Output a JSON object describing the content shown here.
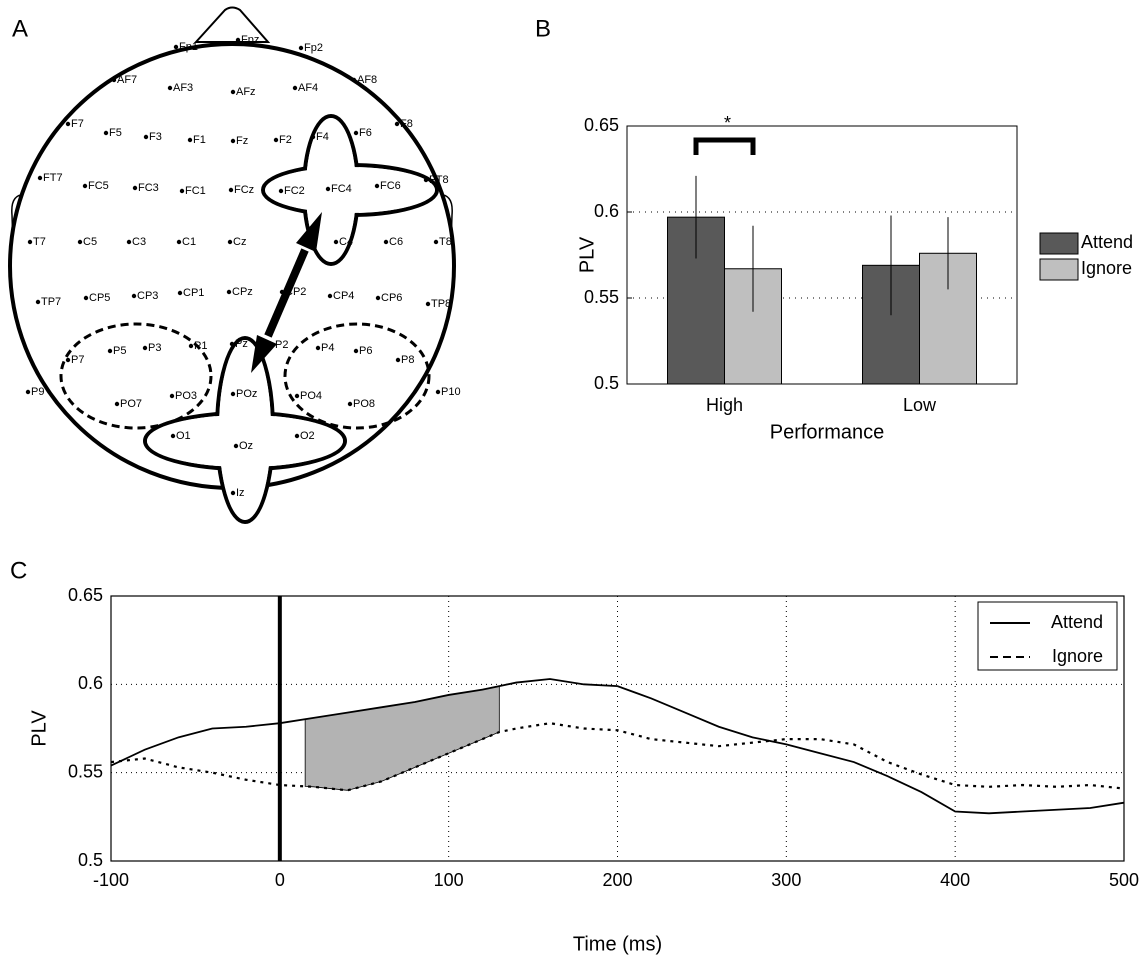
{
  "panel_labels": [
    "A",
    "B",
    "C"
  ],
  "head_map": {
    "electrodes": [
      "Fp1",
      "Fpz",
      "Fp2",
      "AF7",
      "AF3",
      "AFz",
      "AF4",
      "AF8",
      "F7",
      "F5",
      "F3",
      "F1",
      "Fz",
      "F2",
      "F4",
      "F6",
      "F8",
      "FT7",
      "FC5",
      "FC3",
      "FC1",
      "FCz",
      "FC2",
      "FC4",
      "FC6",
      "FT8",
      "T7",
      "C5",
      "C3",
      "C1",
      "Cz",
      "C4",
      "C6",
      "T8",
      "TP7",
      "CP5",
      "CP3",
      "CP1",
      "CPz",
      "CP2",
      "CP4",
      "CP6",
      "TP8",
      "P7",
      "P5",
      "P3",
      "P1",
      "Pz",
      "P2",
      "P4",
      "P6",
      "P8",
      "P9",
      "PO7",
      "PO3",
      "POz",
      "PO4",
      "PO8",
      "P10",
      "O1",
      "Oz",
      "O2",
      "Iz"
    ]
  },
  "chart_data": [
    {
      "type": "bar",
      "xlabel": "Performance",
      "ylabel": "PLV",
      "categories": [
        "High",
        "Low"
      ],
      "series": [
        {
          "name": "Attend",
          "color": "#595959",
          "values": [
            0.597,
            0.569
          ],
          "errors": [
            0.024,
            0.029
          ]
        },
        {
          "name": "Ignore",
          "color": "#bfbfbf",
          "values": [
            0.567,
            0.576
          ],
          "errors": [
            0.025,
            0.021
          ]
        }
      ],
      "ylim": [
        0.5,
        0.65
      ],
      "yticks": [
        0.5,
        0.55,
        0.6,
        0.65
      ],
      "grid": true,
      "legend": "right",
      "annotation": "*"
    },
    {
      "type": "line",
      "xlabel": "Time (ms)",
      "ylabel": "PLV",
      "x": [
        -100,
        -80,
        -60,
        -40,
        -20,
        0,
        20,
        40,
        60,
        80,
        100,
        120,
        130,
        140,
        160,
        180,
        200,
        220,
        240,
        260,
        280,
        300,
        320,
        340,
        360,
        380,
        400,
        420,
        440,
        460,
        480,
        500
      ],
      "series": [
        {
          "name": "Attend",
          "color": "#000000",
          "dash": "solid",
          "values": [
            0.554,
            0.563,
            0.57,
            0.575,
            0.576,
            0.578,
            0.581,
            0.584,
            0.587,
            0.59,
            0.594,
            0.597,
            0.599,
            0.601,
            0.603,
            0.6,
            0.599,
            0.592,
            0.584,
            0.576,
            0.57,
            0.566,
            0.561,
            0.556,
            0.548,
            0.539,
            0.528,
            0.527,
            0.528,
            0.529,
            0.53,
            0.533
          ]
        },
        {
          "name": "Ignore",
          "color": "#000000",
          "dash": "dashed",
          "values": [
            0.556,
            0.558,
            0.553,
            0.55,
            0.546,
            0.543,
            0.542,
            0.54,
            0.545,
            0.553,
            0.561,
            0.569,
            0.573,
            0.575,
            0.578,
            0.575,
            0.574,
            0.569,
            0.567,
            0.565,
            0.567,
            0.569,
            0.569,
            0.566,
            0.556,
            0.549,
            0.543,
            0.542,
            0.543,
            0.542,
            0.543,
            0.541
          ]
        }
      ],
      "xlim": [
        -100,
        500
      ],
      "xticks": [
        -100,
        0,
        100,
        200,
        300,
        400,
        500
      ],
      "ylim": [
        0.5,
        0.65
      ],
      "yticks": [
        0.5,
        0.55,
        0.6,
        0.65
      ],
      "grid": true,
      "legend": "northeast",
      "marker_x": 0,
      "shaded_region": [
        15,
        130
      ],
      "shade_color": "#b3b3b3"
    }
  ]
}
